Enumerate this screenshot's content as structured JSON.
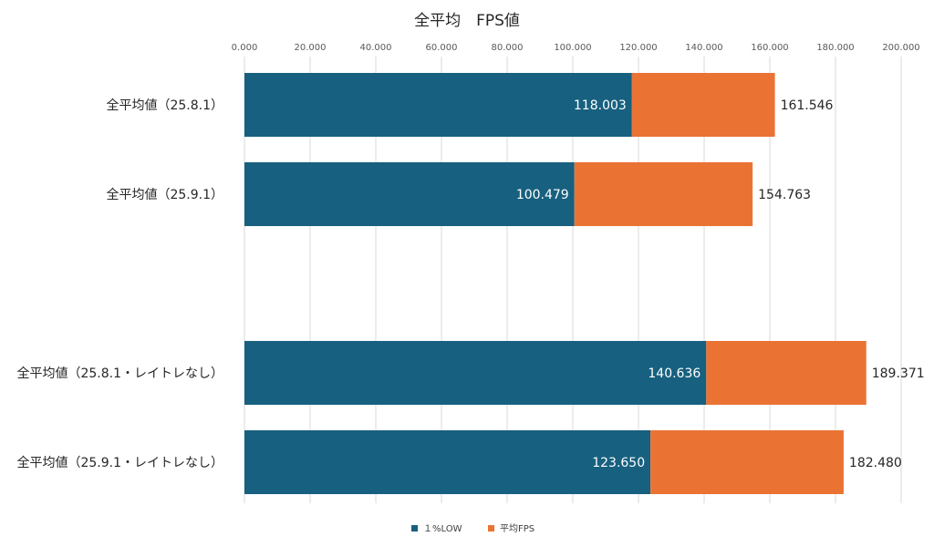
{
  "chart_data": {
    "type": "bar",
    "orientation": "horizontal",
    "title": "全平均　FPS値",
    "categories": [
      "全平均値（25.8.1）",
      "全平均値（25.9.1）",
      "全平均値（25.8.1・レイトレなし）",
      "全平均値（25.9.1・レイトレなし）"
    ],
    "series": [
      {
        "name": "１%LOW",
        "color": "#17607f",
        "values": [
          118.003,
          100.479,
          140.636,
          123.65
        ],
        "labels": [
          "118.003",
          "100.479",
          "140.636",
          "123.650"
        ]
      },
      {
        "name": "平均FPS",
        "color": "#ea7334",
        "values": [
          161.546,
          154.763,
          189.371,
          182.48
        ],
        "labels": [
          "161.546",
          "154.763",
          "189.371",
          "182.480"
        ]
      }
    ],
    "xlim": [
      0,
      200
    ],
    "x_ticks": [
      "0.000",
      "20.000",
      "40.000",
      "60.000",
      "80.000",
      "100.000",
      "120.000",
      "140.000",
      "160.000",
      "180.000",
      "200.000"
    ],
    "x_axis_position": "top",
    "grid": true,
    "legend_position": "bottom"
  }
}
